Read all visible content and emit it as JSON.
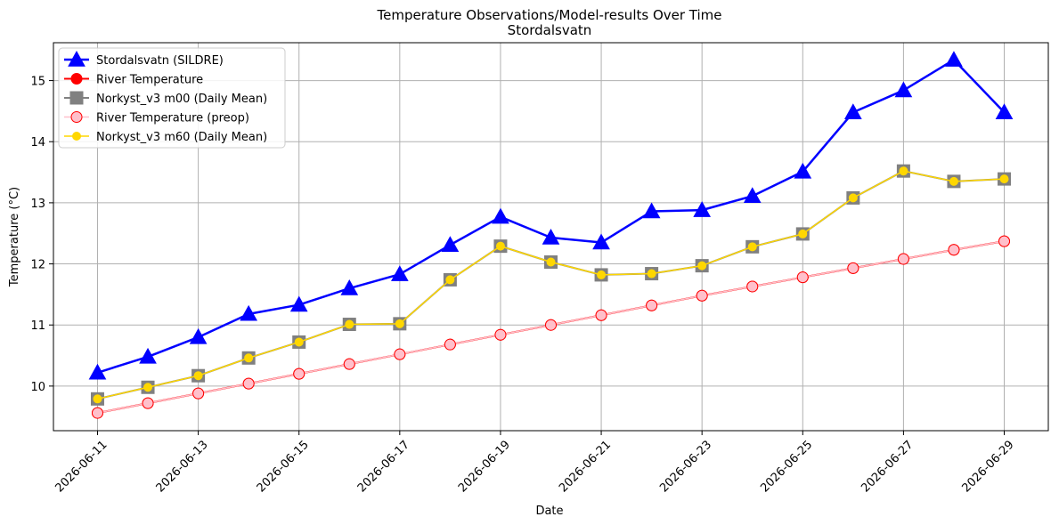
{
  "chart_data": {
    "type": "line",
    "title": "Temperature Observations/Model-results Over Time",
    "subtitle": "Stordalsvatn",
    "xlabel": "Date",
    "ylabel": "Temperature (°C)",
    "x": [
      "2026-06-11",
      "2026-06-12",
      "2026-06-13",
      "2026-06-14",
      "2026-06-15",
      "2026-06-16",
      "2026-06-17",
      "2026-06-18",
      "2026-06-19",
      "2026-06-20",
      "2026-06-21",
      "2026-06-22",
      "2026-06-23",
      "2026-06-24",
      "2026-06-25",
      "2026-06-26",
      "2026-06-27",
      "2026-06-28",
      "2026-06-29"
    ],
    "x_ticks": [
      "2026-06-11",
      "2026-06-13",
      "2026-06-15",
      "2026-06-17",
      "2026-06-19",
      "2026-06-21",
      "2026-06-23",
      "2026-06-25",
      "2026-06-27",
      "2026-06-29"
    ],
    "y_ticks": [
      10,
      11,
      12,
      13,
      14,
      15
    ],
    "xlim": [
      "2026-06-10T03:00",
      "2026-06-29T21:00"
    ],
    "ylim": [
      9.27,
      15.62
    ],
    "grid": true,
    "legend_position": "upper-left",
    "series": [
      {
        "name": "Stordalsvatn (SILDRE)",
        "color": "#0000ff",
        "marker": "triangle",
        "values": [
          10.22,
          10.48,
          10.8,
          11.18,
          11.33,
          11.6,
          11.83,
          12.31,
          12.77,
          12.43,
          12.35,
          12.86,
          12.88,
          13.11,
          13.51,
          14.48,
          14.84,
          15.34,
          14.48
        ]
      },
      {
        "name": "River Temperature",
        "color": "#ff0000",
        "marker": "circle",
        "values": [
          9.56,
          9.72,
          9.88,
          10.04,
          10.2,
          10.36,
          10.52,
          10.68,
          10.84,
          11.0,
          11.16,
          11.32,
          11.48,
          11.63,
          11.78,
          11.93,
          12.08,
          12.23,
          12.37
        ]
      },
      {
        "name": "Norkyst_v3 m00 (Daily Mean)",
        "color": "#808080",
        "marker": "square",
        "values": [
          9.79,
          9.98,
          10.17,
          10.46,
          10.72,
          11.01,
          11.02,
          11.74,
          12.29,
          12.03,
          11.82,
          11.84,
          11.97,
          12.28,
          12.49,
          13.08,
          13.52,
          13.35,
          13.39
        ]
      },
      {
        "name": "River Temperature (preop)",
        "color": "#ffc0cb",
        "marker": "circle-small",
        "values": [
          9.56,
          9.72,
          9.88,
          10.04,
          10.2,
          10.36,
          10.52,
          10.68,
          10.84,
          11.0,
          11.16,
          11.32,
          11.48,
          11.63,
          11.78,
          11.93,
          12.08,
          12.23,
          12.37
        ]
      },
      {
        "name": "Norkyst_v3 m60 (Daily Mean)",
        "color": "#ffd700",
        "marker": "circle-small",
        "values": [
          9.79,
          9.98,
          10.17,
          10.46,
          10.72,
          11.01,
          11.02,
          11.74,
          12.29,
          12.03,
          11.82,
          11.84,
          11.97,
          12.28,
          12.49,
          13.08,
          13.52,
          13.35,
          13.39
        ]
      }
    ]
  }
}
